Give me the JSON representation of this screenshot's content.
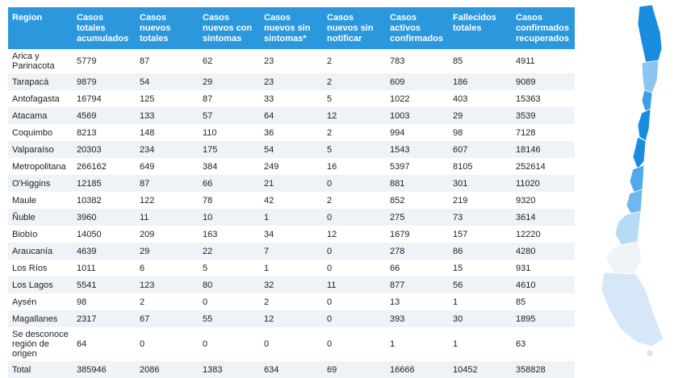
{
  "table": {
    "headers": [
      "Region",
      "Casos totales acumulados",
      "Casos nuevos totales",
      "Casos nuevos con sintomas",
      "Casos nuevos sin sintomas*",
      "Casos nuevos sin notificar",
      "Casos activos confirmados",
      "Fallecidos totales",
      "Casos confirmados recuperados"
    ],
    "rows": [
      [
        "Arica y Parinacota",
        "5779",
        "87",
        "62",
        "23",
        "2",
        "783",
        "85",
        "4911"
      ],
      [
        "Tarapacá",
        "9879",
        "54",
        "29",
        "23",
        "2",
        "609",
        "186",
        "9089"
      ],
      [
        "Antofagasta",
        "16794",
        "125",
        "87",
        "33",
        "5",
        "1022",
        "403",
        "15363"
      ],
      [
        "Atacama",
        "4569",
        "133",
        "57",
        "64",
        "12",
        "1003",
        "29",
        "3539"
      ],
      [
        "Coquimbo",
        "8213",
        "148",
        "110",
        "36",
        "2",
        "994",
        "98",
        "7128"
      ],
      [
        "Valparaíso",
        "20303",
        "234",
        "175",
        "54",
        "5",
        "1543",
        "607",
        "18146"
      ],
      [
        "Metropolitana",
        "266162",
        "649",
        "384",
        "249",
        "16",
        "5397",
        "8105",
        "252614"
      ],
      [
        "O'Higgins",
        "12185",
        "87",
        "66",
        "21",
        "0",
        "881",
        "301",
        "11020"
      ],
      [
        "Maule",
        "10382",
        "122",
        "78",
        "42",
        "2",
        "852",
        "219",
        "9320"
      ],
      [
        "Ñuble",
        "3960",
        "11",
        "10",
        "1",
        "0",
        "275",
        "73",
        "3614"
      ],
      [
        "Biobío",
        "14050",
        "209",
        "163",
        "34",
        "12",
        "1679",
        "157",
        "12220"
      ],
      [
        "Araucanía",
        "4639",
        "29",
        "22",
        "7",
        "0",
        "278",
        "86",
        "4280"
      ],
      [
        "Los Ríos",
        "1011",
        "6",
        "5",
        "1",
        "0",
        "66",
        "15",
        "931"
      ],
      [
        "Los Lagos",
        "5541",
        "123",
        "80",
        "32",
        "11",
        "877",
        "56",
        "4610"
      ],
      [
        "Aysén",
        "98",
        "2",
        "0",
        "2",
        "0",
        "13",
        "1",
        "85"
      ],
      [
        "Magallanes",
        "2317",
        "67",
        "55",
        "12",
        "0",
        "393",
        "30",
        "1895"
      ],
      [
        "Se desconoce región de origen",
        "64",
        "0",
        "0",
        "0",
        "0",
        "1",
        "1",
        "63"
      ],
      [
        "Total",
        "385946",
        "2086",
        "1383",
        "634",
        "69",
        "16666",
        "10452",
        "358828"
      ]
    ]
  }
}
